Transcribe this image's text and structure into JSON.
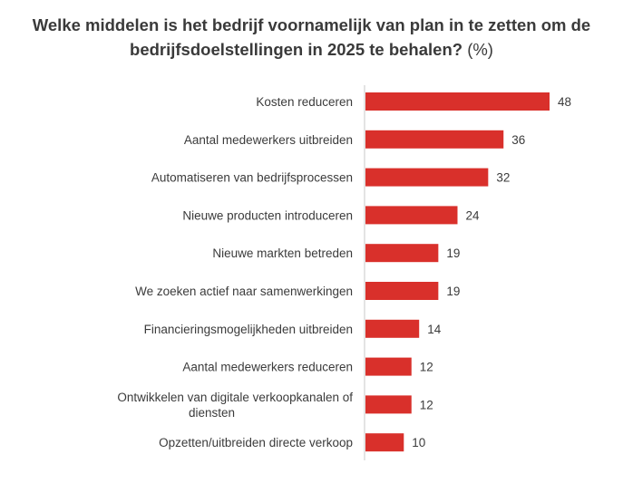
{
  "chart_data": {
    "type": "bar",
    "orientation": "horizontal",
    "title": "Welke middelen is het bedrijf voornamelijk van plan in te zetten om de bedrijfsdoelstellingen in 2025 te behalen?",
    "title_suffix": "(%)",
    "xlabel": "",
    "ylabel": "",
    "xlim": [
      0,
      48
    ],
    "grid": false,
    "categories": [
      "Kosten reduceren",
      "Aantal medewerkers uitbreiden",
      "Automatiseren van bedrijfsprocessen",
      "Nieuwe producten introduceren",
      "Nieuwe markten betreden",
      "We zoeken actief naar samenwerkingen",
      "Financieringsmogelijkheden uitbreiden",
      "Aantal medewerkers reduceren",
      "Ontwikkelen van digitale verkoopkanalen of diensten",
      "Opzetten/uitbreiden directe verkoop"
    ],
    "values": [
      48,
      36,
      32,
      24,
      19,
      19,
      14,
      12,
      12,
      10
    ],
    "bar_color": "#d9302b",
    "axis_color": "#c8c8c8"
  }
}
